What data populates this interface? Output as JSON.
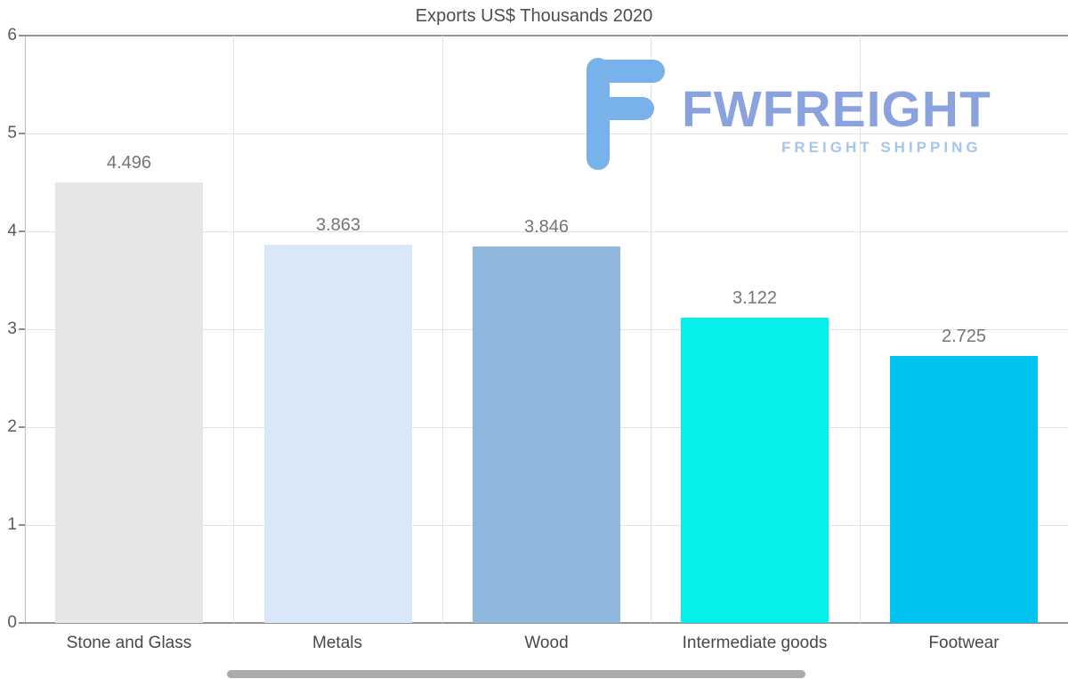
{
  "chart_data": {
    "type": "bar",
    "title": "Exports US$ Thousands 2020",
    "categories": [
      "Stone and Glass",
      "Metals",
      "Wood",
      "Intermediate goods",
      "Footwear"
    ],
    "values": [
      4.496,
      3.863,
      3.846,
      3.122,
      2.725
    ],
    "value_labels": [
      "4.496",
      "3.863",
      "3.846",
      "3.122",
      "2.725"
    ],
    "bar_colors": [
      "#e6e6e6",
      "#d8e8f8",
      "#8fb8dc",
      "#04f0e8",
      "#00c2f0"
    ],
    "ylim": [
      0,
      6
    ],
    "yticks": [
      0,
      1,
      2,
      3,
      4,
      5,
      6
    ],
    "xlabel": "",
    "ylabel": "",
    "grid": "horizontal gridlines plus vertical category separators",
    "legend_position": "none"
  },
  "logo": {
    "name": "FWFREIGHT",
    "tagline": "FREIGHT SHIPPING",
    "mark_icon": "fw-monogram-icon",
    "colors": {
      "mark": "#79b2ea",
      "name": "#8aa2dd",
      "tagline": "#a5c6ec"
    }
  }
}
